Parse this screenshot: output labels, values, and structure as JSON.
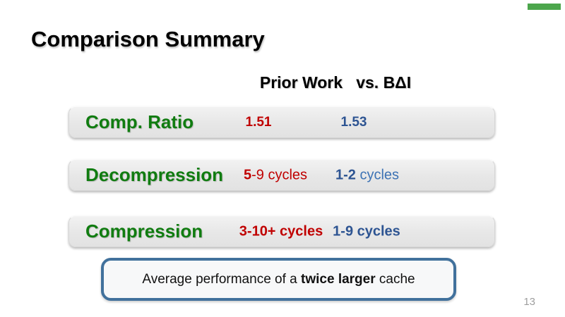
{
  "slide": {
    "title": "Comparison Summary",
    "column_header": "Prior Work   vs. BΔI",
    "page_number": "13",
    "accent_bar_color": "#4CA64C",
    "colors": {
      "label_green": "#107C10",
      "prior_work_red": "#C00000",
      "bdi_blue_bold": "#2D5492",
      "bdi_blue_light": "#3C72B4",
      "callout_border_blue": "#41719C",
      "row_fill_gray": "#E7E7E7"
    },
    "rows": [
      {
        "label": "Comp. Ratio",
        "prior_bold": "1.51",
        "prior_rest": "",
        "vs_bold": "1.53",
        "vs_rest": ""
      },
      {
        "label": "Decompression",
        "prior_bold": "5",
        "prior_rest": "-9 cycles",
        "vs_bold": "1-2",
        "vs_rest": " cycles"
      },
      {
        "label": "Compression",
        "prior_bold": "3-10+ cycles",
        "prior_rest": "",
        "vs_bold": "1-9 cycles",
        "vs_rest": ""
      }
    ],
    "callout": {
      "prefix": "Average performance of a ",
      "emphasis": "twice larger",
      "suffix": " cache"
    }
  }
}
